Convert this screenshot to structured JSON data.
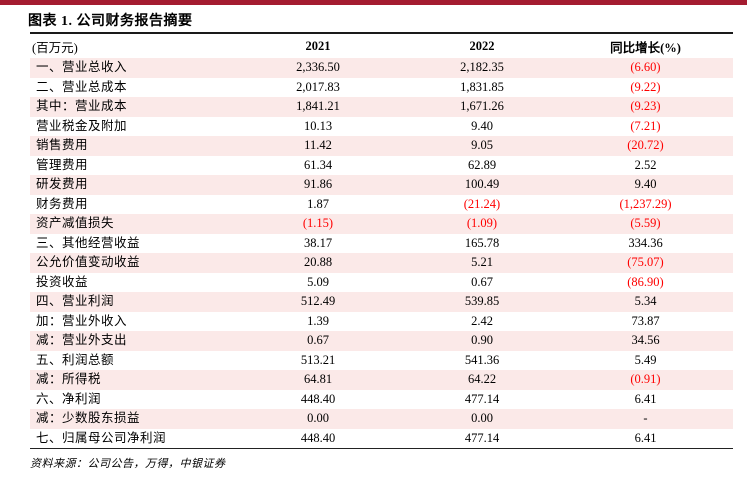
{
  "page": {
    "colors": {
      "accent": "#a41c30",
      "stripe": "#fbe9e8",
      "negative": "#ff0000",
      "text": "#000000"
    }
  },
  "header": {
    "title": "图表 1. 公司财务报告摘要"
  },
  "table": {
    "columns": [
      "(百万元)",
      "2021",
      "2022",
      "同比增长(%)"
    ],
    "rows": [
      {
        "label": "一、营业总收入",
        "y2021": "2,336.50",
        "y2022": "2,182.35",
        "yoy": "(6.60)"
      },
      {
        "label": "二、营业总成本",
        "y2021": "2,017.83",
        "y2022": "1,831.85",
        "yoy": "(9.22)"
      },
      {
        "label": "其中：营业成本",
        "y2021": "1,841.21",
        "y2022": "1,671.26",
        "yoy": "(9.23)"
      },
      {
        "label": "营业税金及附加",
        "y2021": "10.13",
        "y2022": "9.40",
        "yoy": "(7.21)"
      },
      {
        "label": "销售费用",
        "y2021": "11.42",
        "y2022": "9.05",
        "yoy": "(20.72)"
      },
      {
        "label": "管理费用",
        "y2021": "61.34",
        "y2022": "62.89",
        "yoy": "2.52"
      },
      {
        "label": "研发费用",
        "y2021": "91.86",
        "y2022": "100.49",
        "yoy": "9.40"
      },
      {
        "label": "财务费用",
        "y2021": "1.87",
        "y2022": "(21.24)",
        "yoy": "(1,237.29)"
      },
      {
        "label": "资产减值损失",
        "y2021": "(1.15)",
        "y2022": "(1.09)",
        "yoy": "(5.59)"
      },
      {
        "label": "三、其他经营收益",
        "y2021": "38.17",
        "y2022": "165.78",
        "yoy": "334.36"
      },
      {
        "label": "公允价值变动收益",
        "y2021": "20.88",
        "y2022": "5.21",
        "yoy": "(75.07)"
      },
      {
        "label": "投资收益",
        "y2021": "5.09",
        "y2022": "0.67",
        "yoy": "(86.90)"
      },
      {
        "label": "四、营业利润",
        "y2021": "512.49",
        "y2022": "539.85",
        "yoy": "5.34"
      },
      {
        "label": "加：营业外收入",
        "y2021": "1.39",
        "y2022": "2.42",
        "yoy": "73.87"
      },
      {
        "label": "减：营业外支出",
        "y2021": "0.67",
        "y2022": "0.90",
        "yoy": "34.56"
      },
      {
        "label": "五、利润总额",
        "y2021": "513.21",
        "y2022": "541.36",
        "yoy": "5.49"
      },
      {
        "label": "减：所得税",
        "y2021": "64.81",
        "y2022": "64.22",
        "yoy": "(0.91)"
      },
      {
        "label": "六、净利润",
        "y2021": "448.40",
        "y2022": "477.14",
        "yoy": "6.41"
      },
      {
        "label": "减：少数股东损益",
        "y2021": "0.00",
        "y2022": "0.00",
        "yoy": "-"
      },
      {
        "label": "七、归属母公司净利润",
        "y2021": "448.40",
        "y2022": "477.14",
        "yoy": "6.41"
      }
    ]
  },
  "footer": {
    "source": "资料来源：公司公告，万得，中银证券"
  }
}
